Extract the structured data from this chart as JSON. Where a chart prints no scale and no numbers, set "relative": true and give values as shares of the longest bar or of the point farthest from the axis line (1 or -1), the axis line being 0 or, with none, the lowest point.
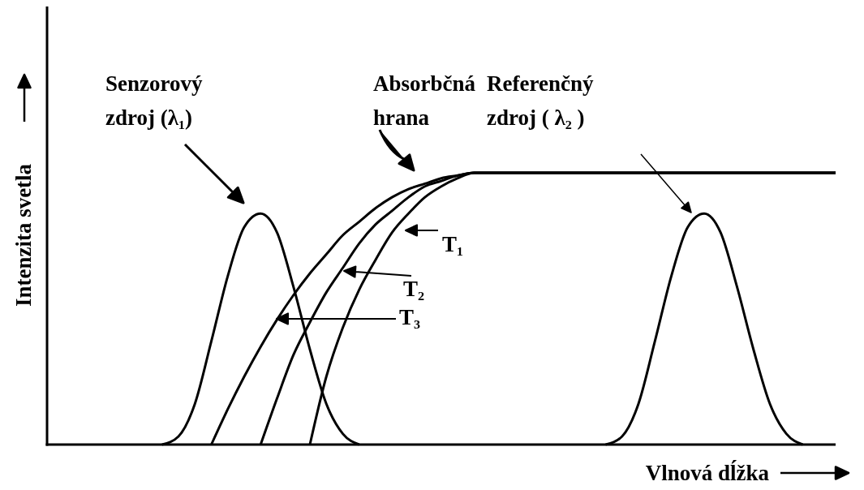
{
  "chart_data": {
    "type": "line",
    "relative": true,
    "xlabel": "Vlnová dĺžka",
    "ylabel": "Intenzita svetla",
    "line_style": "solid",
    "categories": [
      null,
      null,
      null,
      null,
      null,
      null,
      null,
      null,
      null,
      null,
      null,
      null,
      null,
      null,
      null,
      null,
      null,
      null,
      null,
      null,
      null,
      null,
      null,
      null,
      null,
      null,
      null,
      null,
      null,
      null,
      null,
      null,
      null,
      null,
      null,
      null,
      null,
      null,
      null,
      null,
      null,
      null,
      null,
      null,
      null,
      null,
      null,
      null,
      null
    ],
    "series": [
      {
        "color": "#000000",
        "values": [
          null,
          null,
          null,
          null,
          null,
          null,
          null,
          0,
          0.03,
          0.15,
          0.38,
          0.62,
          0.8,
          0.85,
          0.78,
          0.58,
          0.35,
          0.15,
          0.04,
          0,
          null,
          null,
          null,
          null,
          null,
          null,
          null,
          null,
          null,
          null,
          null,
          null,
          null,
          null,
          null,
          null,
          null,
          null,
          null,
          null,
          null,
          null,
          null,
          null,
          null,
          null,
          null,
          null,
          null
        ]
      },
      {
        "color": "#000000",
        "values": [
          null,
          null,
          null,
          null,
          null,
          null,
          null,
          null,
          null,
          null,
          0,
          0.13,
          0.25,
          0.36,
          0.46,
          0.55,
          0.63,
          0.7,
          0.77,
          0.82,
          0.87,
          0.91,
          0.94,
          0.96,
          0.98,
          0.99,
          1,
          1,
          1,
          1,
          1,
          1,
          1,
          1,
          1,
          1,
          1,
          1,
          1,
          1,
          1,
          1,
          1,
          1,
          1,
          1,
          1,
          1,
          1
        ]
      },
      {
        "color": "#000000",
        "values": [
          null,
          null,
          null,
          null,
          null,
          null,
          null,
          null,
          null,
          null,
          null,
          null,
          null,
          0,
          0.17,
          0.33,
          0.45,
          0.56,
          0.65,
          0.74,
          0.81,
          0.86,
          0.91,
          0.95,
          0.97,
          0.99,
          1,
          1,
          1,
          1,
          1,
          1,
          1,
          1,
          1,
          1,
          1,
          1,
          1,
          1,
          1,
          1,
          1,
          1,
          1,
          1,
          1,
          1,
          1
        ]
      },
      {
        "color": "#000000",
        "values": [
          null,
          null,
          null,
          null,
          null,
          null,
          null,
          null,
          null,
          null,
          null,
          null,
          null,
          null,
          null,
          null,
          0,
          0.25,
          0.43,
          0.57,
          0.68,
          0.78,
          0.85,
          0.91,
          0.95,
          0.98,
          1,
          1,
          1,
          1,
          1,
          1,
          1,
          1,
          1,
          1,
          1,
          1,
          1,
          1,
          1,
          1,
          1,
          1,
          1,
          1,
          1,
          1,
          1
        ]
      },
      {
        "color": "#000000",
        "values": [
          null,
          null,
          null,
          null,
          null,
          null,
          null,
          null,
          null,
          null,
          null,
          null,
          null,
          null,
          null,
          null,
          null,
          null,
          null,
          null,
          null,
          null,
          null,
          null,
          null,
          null,
          null,
          null,
          null,
          null,
          null,
          null,
          null,
          null,
          0,
          0.03,
          0.15,
          0.38,
          0.62,
          0.8,
          0.85,
          0.78,
          0.58,
          0.35,
          0.15,
          0.04,
          0,
          null,
          null
        ]
      }
    ],
    "annotations": [
      "Senzorový\nzdroj (λ₁)",
      "Absorbčná\nhrana",
      "Referenčný\nzdroj ( λ₂ )",
      "T₁",
      "T₂",
      "T₃"
    ]
  }
}
